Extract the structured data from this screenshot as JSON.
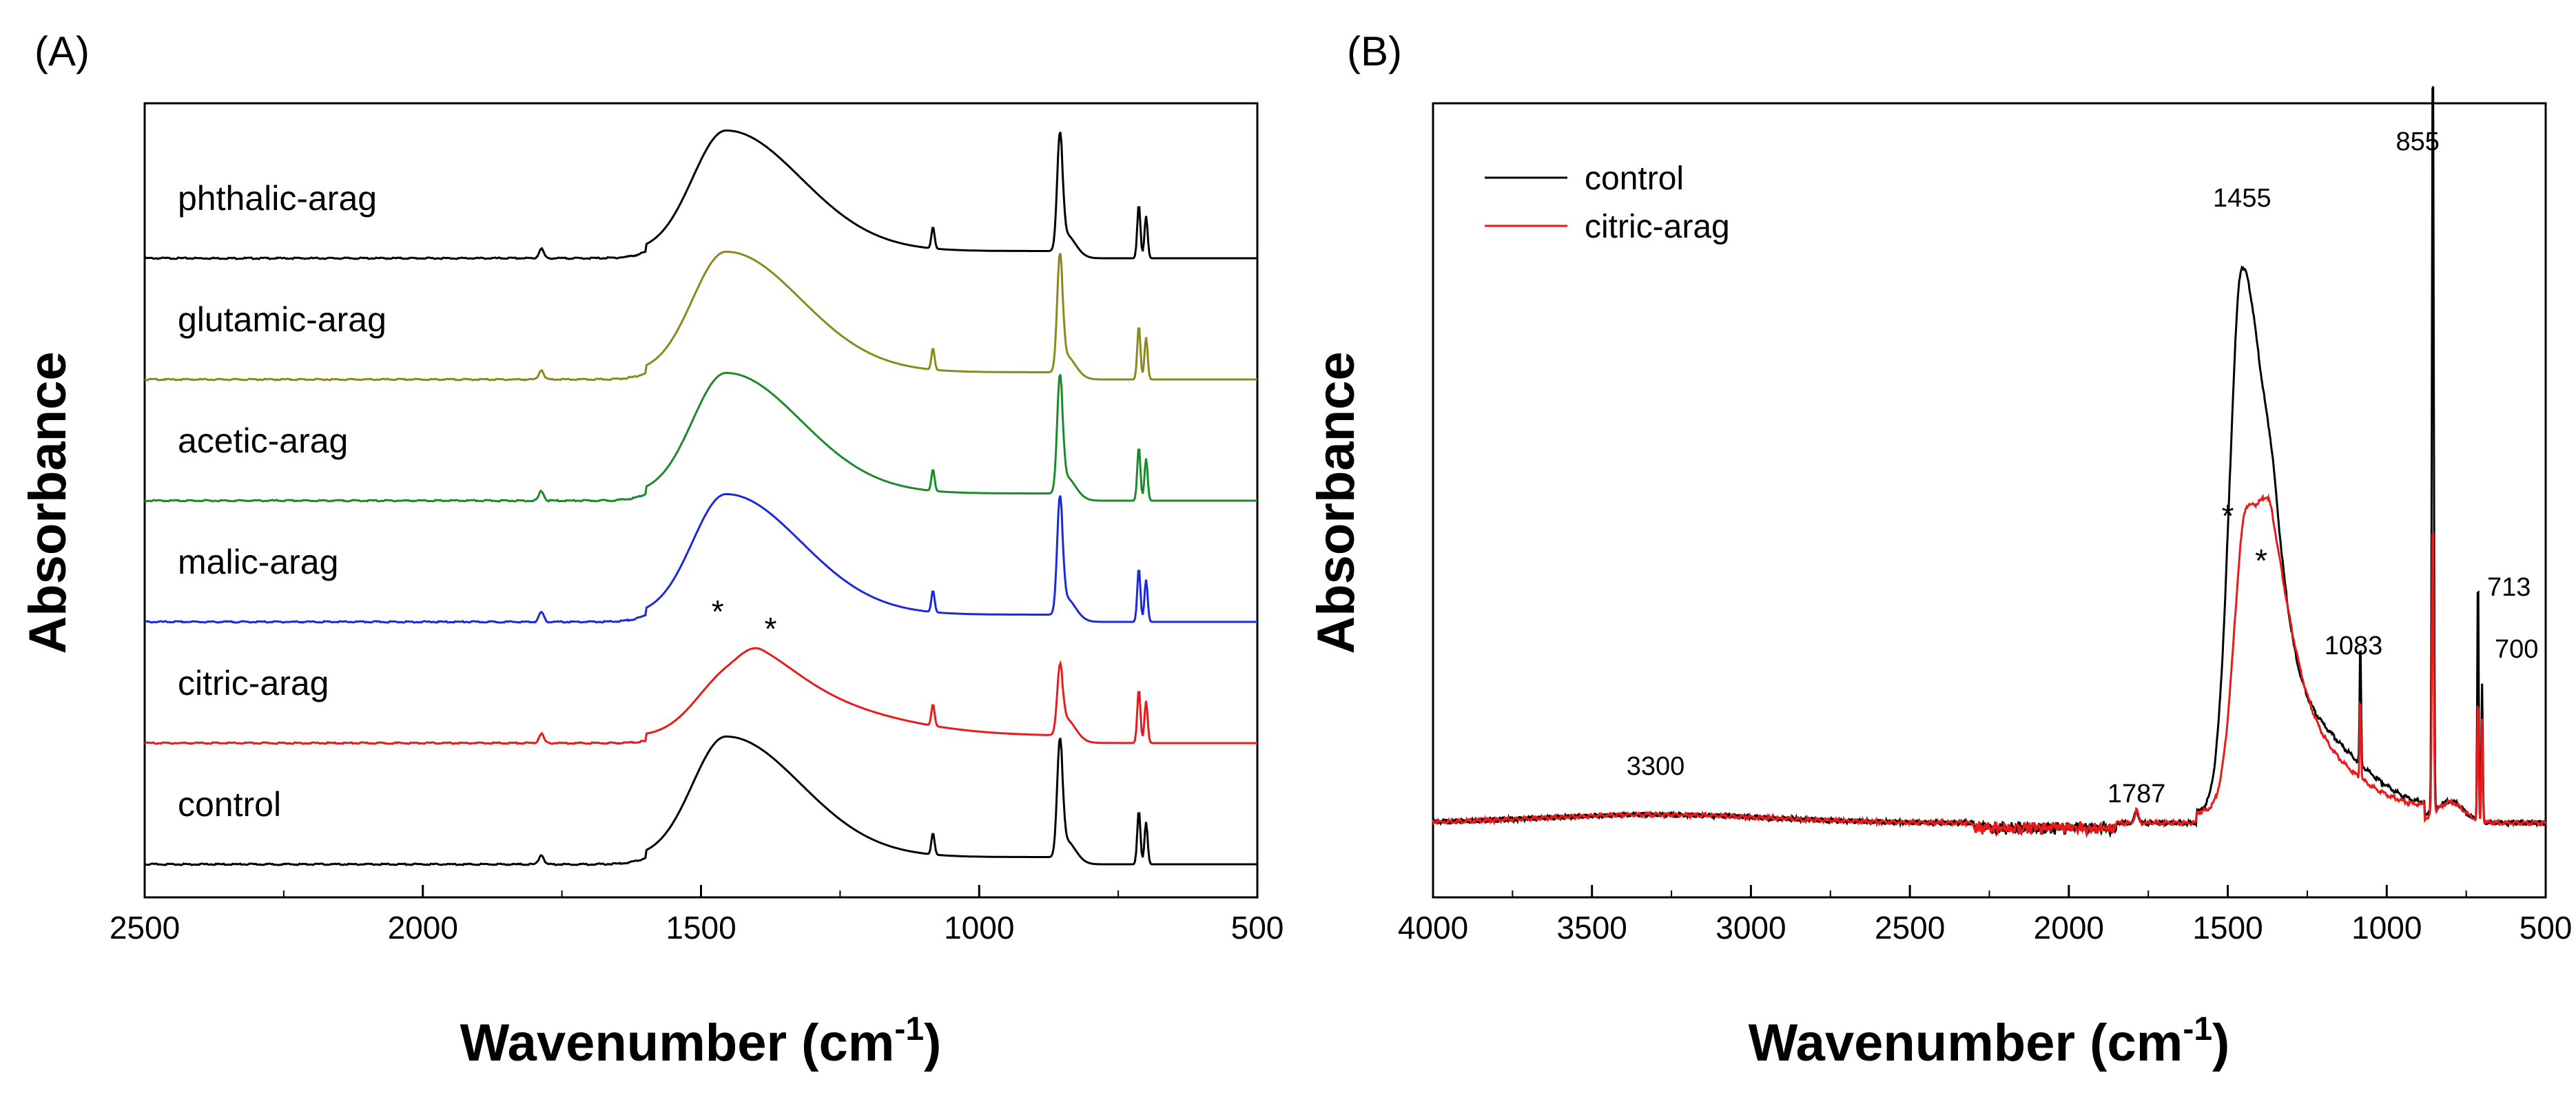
{
  "chart_data": [
    {
      "id": "A",
      "panel_label": "(A)",
      "type": "line",
      "xlabel": "Wavenumber (cm",
      "xlabel_sup": "-1",
      "xlabel_close": ")",
      "ylabel": "Absorbance",
      "xlim": [
        2500,
        500
      ],
      "x_reversed": true,
      "xticks": [
        "2500",
        "2000",
        "1500",
        "1000",
        "500"
      ],
      "yticks": [],
      "series": [
        {
          "name": "phthalic-arag",
          "color": "#000000",
          "offset": 5,
          "bandAmp": 1.0
        },
        {
          "name": "glutamic-arag",
          "color": "#8a8a1c",
          "offset": 4,
          "bandAmp": 1.0
        },
        {
          "name": "acetic-arag",
          "color": "#1a8a2a",
          "offset": 3,
          "bandAmp": 1.0
        },
        {
          "name": "malic-arag",
          "color": "#1a2ad8",
          "offset": 2,
          "bandAmp": 1.0
        },
        {
          "name": "citric-arag",
          "color": "#e81a1a",
          "offset": 1,
          "bandAmp": 0.75
        },
        {
          "name": "control",
          "color": "#000000",
          "offset": 0,
          "bandAmp": 1.0
        }
      ],
      "annotations": [
        {
          "text": "*",
          "x": 1470
        },
        {
          "text": "*",
          "x": 1375
        }
      ]
    },
    {
      "id": "B",
      "panel_label": "(B)",
      "type": "line",
      "xlabel": "Wavenumber (cm",
      "xlabel_sup": "-1",
      "xlabel_close": ")",
      "ylabel": "Absorbance",
      "xlim": [
        4000,
        500
      ],
      "x_reversed": true,
      "xticks": [
        "4000",
        "3500",
        "3000",
        "2500",
        "2000",
        "1500",
        "1000",
        "500"
      ],
      "yticks": [],
      "legend_position": "top-left",
      "series": [
        {
          "name": "control",
          "color": "#000000"
        },
        {
          "name": "citric-arag",
          "color": "#e81a1a"
        }
      ],
      "peak_labels": [
        {
          "text": "3300",
          "x": 3300
        },
        {
          "text": "1787",
          "x": 1787
        },
        {
          "text": "1455",
          "x": 1455
        },
        {
          "text": "1083",
          "x": 1083
        },
        {
          "text": "855",
          "x": 855
        },
        {
          "text": "713",
          "x": 713
        },
        {
          "text": "700",
          "x": 700
        }
      ],
      "annotations": [
        {
          "text": "*",
          "x": 1500
        },
        {
          "text": "*",
          "x": 1395
        }
      ]
    }
  ]
}
